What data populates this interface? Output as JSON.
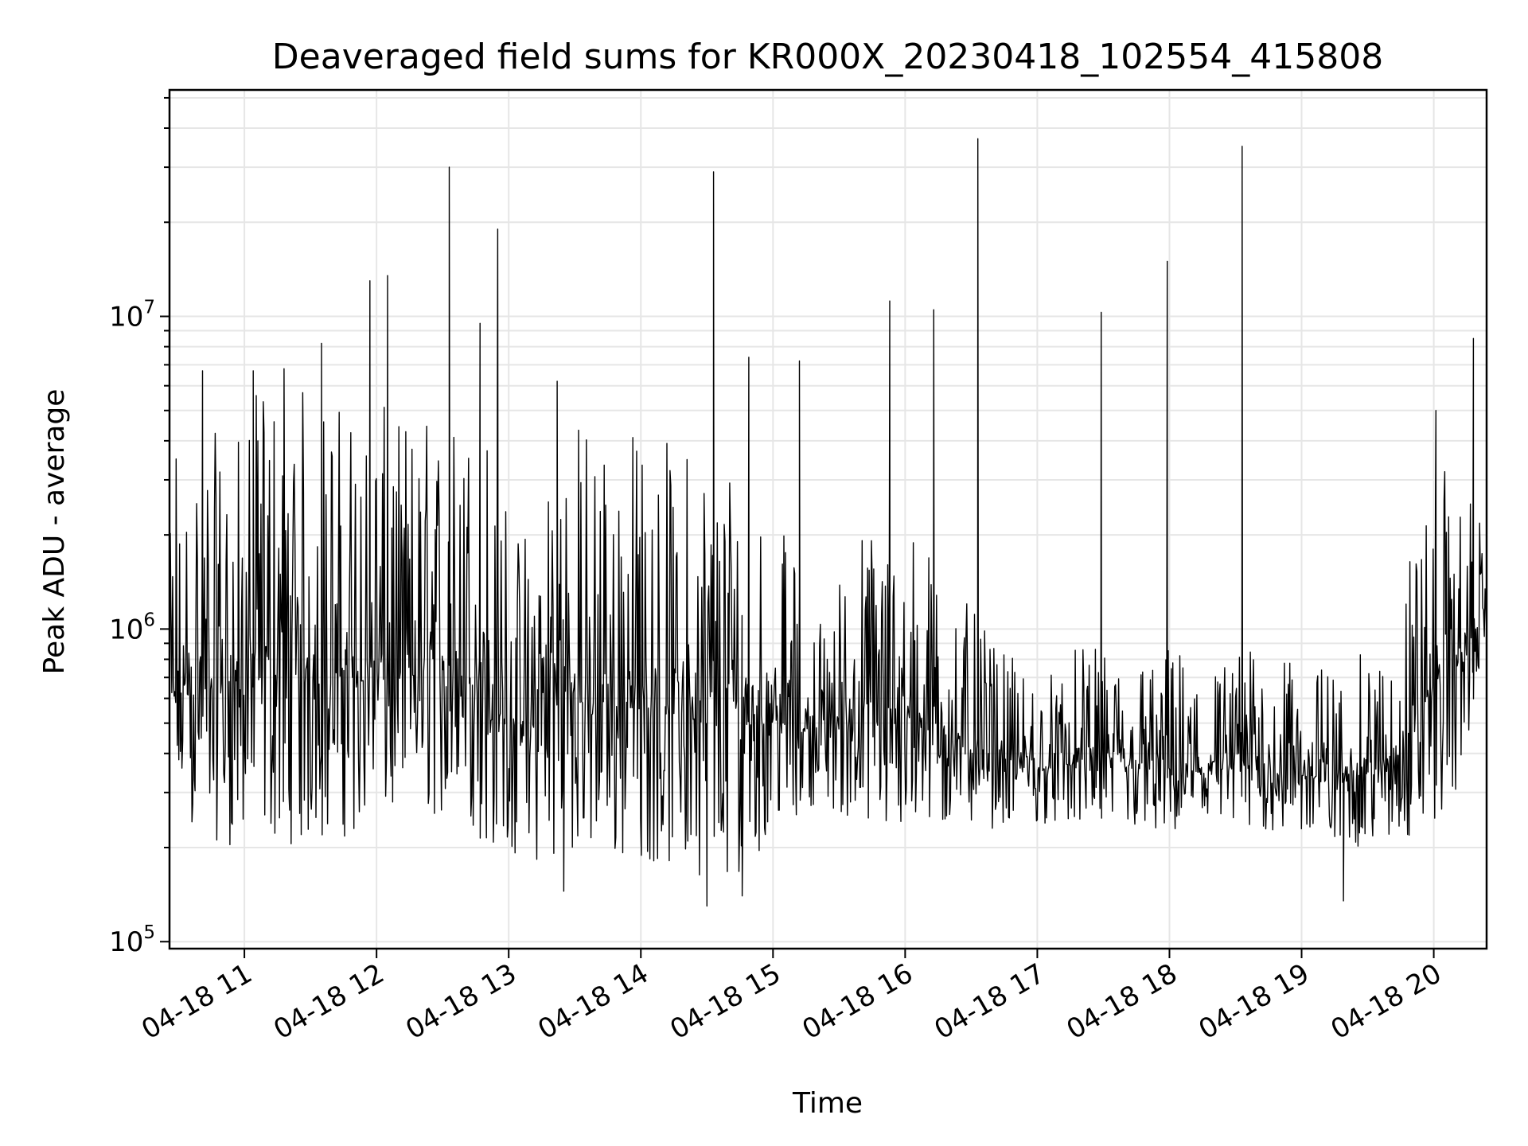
{
  "chart_data": {
    "type": "line",
    "title": "Deaveraged field sums for KR000X_20230418_102554_415808",
    "xlabel": "Time",
    "ylabel": "Peak ADU - average",
    "yscale": "log",
    "ylim": [
      95000,
      53000000
    ],
    "xlim": [
      "04-18 10:26",
      "04-18 20:24"
    ],
    "grid": true,
    "line_color": "#000000",
    "grid_color": "#e6e6e6",
    "x_ticks": [
      {
        "t": "04-18 11:00",
        "label": "04-18 11"
      },
      {
        "t": "04-18 12:00",
        "label": "04-18 12"
      },
      {
        "t": "04-18 13:00",
        "label": "04-18 13"
      },
      {
        "t": "04-18 14:00",
        "label": "04-18 14"
      },
      {
        "t": "04-18 15:00",
        "label": "04-18 15"
      },
      {
        "t": "04-18 16:00",
        "label": "04-18 16"
      },
      {
        "t": "04-18 17:00",
        "label": "04-18 17"
      },
      {
        "t": "04-18 18:00",
        "label": "04-18 18"
      },
      {
        "t": "04-18 19:00",
        "label": "04-18 19"
      },
      {
        "t": "04-18 20:00",
        "label": "04-18 20"
      }
    ],
    "y_ticks": [
      {
        "value": 100000,
        "base": "10",
        "exp": "5"
      },
      {
        "value": 1000000,
        "base": "10",
        "exp": "6"
      },
      {
        "value": 10000000,
        "base": "10",
        "exp": "7"
      }
    ],
    "series": [
      {
        "values_description_key": "envelope",
        "envelope": [
          {
            "t": "04-18 10:26",
            "low": 280000,
            "high": 2000000
          },
          {
            "t": "04-18 10:40",
            "low": 220000,
            "high": 4500000
          },
          {
            "t": "04-18 10:55",
            "low": 200000,
            "high": 4000000
          },
          {
            "t": "04-18 11:10",
            "low": 210000,
            "high": 6800000
          },
          {
            "t": "04-18 11:30",
            "low": 200000,
            "high": 6000000
          },
          {
            "t": "04-18 11:50",
            "low": 220000,
            "high": 5500000
          },
          {
            "t": "04-18 12:10",
            "low": 240000,
            "high": 5000000
          },
          {
            "t": "04-18 12:30",
            "low": 250000,
            "high": 5000000
          },
          {
            "t": "04-18 12:50",
            "low": 200000,
            "high": 5500000
          },
          {
            "t": "04-18 13:05",
            "low": 180000,
            "high": 2000000
          },
          {
            "t": "04-18 13:20",
            "low": 170000,
            "high": 5000000
          },
          {
            "t": "04-18 13:40",
            "low": 180000,
            "high": 5000000
          },
          {
            "t": "04-18 14:00",
            "low": 180000,
            "high": 4500000
          },
          {
            "t": "04-18 14:20",
            "low": 170000,
            "high": 4000000
          },
          {
            "t": "04-18 14:40",
            "low": 150000,
            "high": 4200000
          },
          {
            "t": "04-18 15:00",
            "low": 220000,
            "high": 2500000
          },
          {
            "t": "04-18 15:20",
            "low": 280000,
            "high": 1100000
          },
          {
            "t": "04-18 15:40",
            "low": 230000,
            "high": 2200000
          },
          {
            "t": "04-18 16:00",
            "low": 210000,
            "high": 2400000
          },
          {
            "t": "04-18 16:20",
            "low": 230000,
            "high": 1500000
          },
          {
            "t": "04-18 16:40",
            "low": 230000,
            "high": 900000
          },
          {
            "t": "04-18 17:00",
            "low": 240000,
            "high": 700000
          },
          {
            "t": "04-18 17:20",
            "low": 230000,
            "high": 900000
          },
          {
            "t": "04-18 17:40",
            "low": 230000,
            "high": 800000
          },
          {
            "t": "04-18 18:00",
            "low": 210000,
            "high": 900000
          },
          {
            "t": "04-18 18:20",
            "low": 220000,
            "high": 800000
          },
          {
            "t": "04-18 18:40",
            "low": 220000,
            "high": 900000
          },
          {
            "t": "04-18 19:00",
            "low": 220000,
            "high": 750000
          },
          {
            "t": "04-18 19:20",
            "low": 200000,
            "high": 800000
          },
          {
            "t": "04-18 19:40",
            "low": 200000,
            "high": 900000
          },
          {
            "t": "04-18 19:55",
            "low": 220000,
            "high": 2800000
          },
          {
            "t": "04-18 20:10",
            "low": 280000,
            "high": 3500000
          },
          {
            "t": "04-18 20:24",
            "low": 900000,
            "high": 2000000
          }
        ],
        "peaks": [
          {
            "t": "04-18 10:29",
            "value": 3500000
          },
          {
            "t": "04-18 10:41",
            "value": 6700000
          },
          {
            "t": "04-18 11:04",
            "value": 6700000
          },
          {
            "t": "04-18 11:18",
            "value": 6800000
          },
          {
            "t": "04-18 11:35",
            "value": 8200000
          },
          {
            "t": "04-18 11:57",
            "value": 13000000
          },
          {
            "t": "04-18 12:05",
            "value": 13500000
          },
          {
            "t": "04-18 12:33",
            "value": 30000000
          },
          {
            "t": "04-18 12:47",
            "value": 9500000
          },
          {
            "t": "04-18 12:55",
            "value": 19000000
          },
          {
            "t": "04-18 13:22",
            "value": 6200000
          },
          {
            "t": "04-18 14:33",
            "value": 29000000
          },
          {
            "t": "04-18 14:49",
            "value": 7400000
          },
          {
            "t": "04-18 15:12",
            "value": 7200000
          },
          {
            "t": "04-18 15:53",
            "value": 11200000
          },
          {
            "t": "04-18 16:13",
            "value": 10500000
          },
          {
            "t": "04-18 16:33",
            "value": 37000000
          },
          {
            "t": "04-18 17:29",
            "value": 10300000
          },
          {
            "t": "04-18 17:59",
            "value": 15000000
          },
          {
            "t": "04-18 18:33",
            "value": 35000000
          },
          {
            "t": "04-18 20:01",
            "value": 5000000
          },
          {
            "t": "04-18 20:18",
            "value": 8500000
          }
        ],
        "troughs": [
          {
            "t": "04-18 14:30",
            "value": 130000
          },
          {
            "t": "04-18 14:46",
            "value": 140000
          },
          {
            "t": "04-18 19:19",
            "value": 135000
          },
          {
            "t": "04-18 13:25",
            "value": 145000
          }
        ]
      }
    ]
  }
}
